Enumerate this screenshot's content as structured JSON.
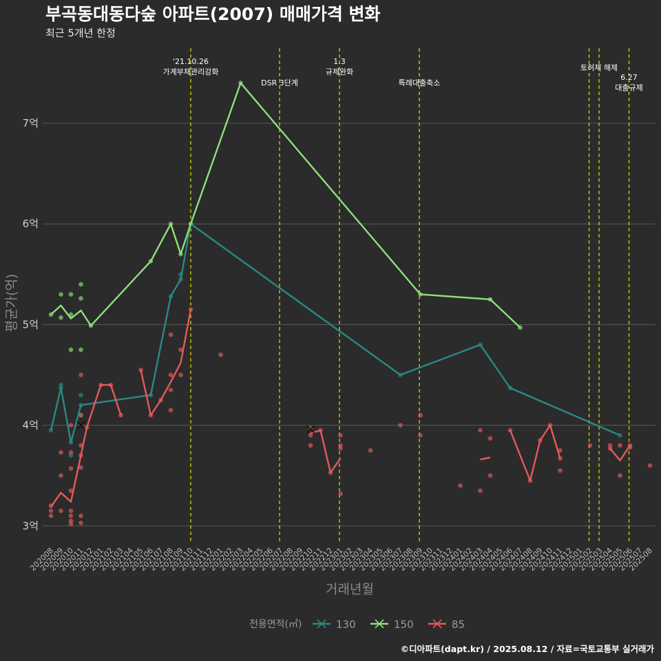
{
  "title": "부곡동대동다숲 아파트(2007) 매매가격 변화",
  "subtitle": "최근 5개년 한정",
  "caption": "©디아파트(dapt.kr) / 2025.08.12 / 자료=국토교통부 실거래가",
  "chart_data": {
    "type": "line",
    "xlabel": "거래년월",
    "ylabel": "평균가(억)",
    "ylim": [
      2.85,
      7.9
    ],
    "yticks": [
      3,
      4,
      5,
      6,
      7
    ],
    "ytick_labels": [
      "3억",
      "4억",
      "5억",
      "6억",
      "7억"
    ],
    "grid": true,
    "legend_position": "bottom",
    "legend_title": "전용면적(㎡)",
    "categories": [
      "202008",
      "202009",
      "202010",
      "202011",
      "202012",
      "202101",
      "202102",
      "202103",
      "202104",
      "202105",
      "202106",
      "202107",
      "202108",
      "202109",
      "202110",
      "202111",
      "202112",
      "202201",
      "202202",
      "202203",
      "202204",
      "202205",
      "202206",
      "202207",
      "202208",
      "202209",
      "202210",
      "202211",
      "202212",
      "202301",
      "202302",
      "202303",
      "202304",
      "202305",
      "202306",
      "202307",
      "202308",
      "202309",
      "202310",
      "202311",
      "202312",
      "202401",
      "202402",
      "202403",
      "202404",
      "202405",
      "202406",
      "202407",
      "202408",
      "202409",
      "202410",
      "202411",
      "202412",
      "202501",
      "202502",
      "202503",
      "202504",
      "202505",
      "202506",
      "202507",
      "202508"
    ],
    "events": [
      {
        "x": 14.0,
        "label": "'21.10.26\n가계부채관리강화"
      },
      {
        "x": 22.9,
        "label": "DSR 3단계"
      },
      {
        "x": 28.9,
        "label": "1.3\n규제완화"
      },
      {
        "x": 36.9,
        "label": "특례대출축소"
      },
      {
        "x": 53.9,
        "label": ""
      },
      {
        "x": 54.9,
        "label": "토허제 해제"
      },
      {
        "x": 57.9,
        "label": "6.27\n대출규제"
      }
    ],
    "series": [
      {
        "name": "130",
        "color": "#2a8a85",
        "line": [
          [
            0,
            3.95
          ],
          [
            1,
            4.37
          ],
          [
            2,
            3.83
          ],
          [
            3,
            4.2
          ],
          [
            10,
            4.3
          ],
          [
            12,
            5.28
          ],
          [
            13,
            5.45
          ],
          [
            14,
            6.0
          ],
          [
            35,
            4.5
          ],
          [
            43,
            4.8
          ],
          [
            46,
            4.37
          ],
          [
            57,
            3.9
          ]
        ],
        "points": [
          [
            0,
            3.95
          ],
          [
            1,
            4.4
          ],
          [
            1,
            4.37
          ],
          [
            2,
            3.83
          ],
          [
            2,
            3.7
          ],
          [
            3,
            4.3
          ],
          [
            3,
            4.2
          ],
          [
            3,
            4.1
          ],
          [
            10,
            4.3
          ],
          [
            12,
            5.28
          ],
          [
            13,
            5.5
          ],
          [
            13,
            5.45
          ],
          [
            14,
            6.0
          ],
          [
            35,
            4.5
          ],
          [
            43,
            4.8
          ],
          [
            46,
            4.37
          ],
          [
            57,
            3.9
          ]
        ]
      },
      {
        "name": "150",
        "color": "#8fe07e",
        "line": [
          [
            0,
            5.1
          ],
          [
            1,
            5.19
          ],
          [
            2,
            5.06
          ],
          [
            3,
            5.14
          ],
          [
            4,
            4.99
          ],
          [
            10,
            5.63
          ],
          [
            12,
            6.0
          ],
          [
            13,
            5.7
          ],
          [
            14,
            6.0
          ],
          [
            19,
            7.4
          ],
          [
            37,
            5.3
          ],
          [
            44,
            5.25
          ],
          [
            47,
            4.97
          ]
        ],
        "points": [
          [
            0,
            5.1
          ],
          [
            1,
            5.3
          ],
          [
            1,
            5.07
          ],
          [
            2,
            5.3
          ],
          [
            2,
            5.1
          ],
          [
            2,
            4.75
          ],
          [
            3,
            5.4
          ],
          [
            3,
            5.26
          ],
          [
            3,
            4.75
          ],
          [
            4,
            4.99
          ],
          [
            10,
            5.63
          ],
          [
            12,
            6.0
          ],
          [
            13,
            5.7
          ],
          [
            14,
            6.0
          ],
          [
            19,
            7.4
          ],
          [
            37,
            5.3
          ],
          [
            44,
            5.25
          ],
          [
            47,
            4.97
          ]
        ]
      },
      {
        "name": "85",
        "color": "#e65a5a",
        "line": [
          [
            0,
            3.19
          ],
          [
            1,
            3.33
          ],
          [
            2,
            3.24
          ],
          [
            3,
            3.7
          ],
          [
            3.6,
            3.98
          ],
          [
            5,
            4.4
          ],
          [
            6,
            4.4
          ],
          [
            7,
            4.1
          ],
          [
            null,
            null
          ],
          [
            9,
            4.55
          ],
          [
            10,
            4.1
          ],
          [
            11,
            4.25
          ],
          [
            12,
            4.43
          ],
          [
            13,
            4.62
          ],
          [
            14,
            5.15
          ],
          [
            null,
            null
          ],
          [
            26,
            3.92
          ],
          [
            27,
            3.95
          ],
          [
            28,
            3.53
          ],
          [
            29,
            3.67
          ],
          [
            null,
            null
          ],
          [
            43,
            3.66
          ],
          [
            44,
            3.68
          ],
          [
            null,
            null
          ],
          [
            46,
            3.95
          ],
          [
            48,
            3.45
          ],
          [
            49,
            3.85
          ],
          [
            50,
            4.0
          ],
          [
            51,
            3.67
          ],
          [
            null,
            null
          ],
          [
            56,
            3.77
          ],
          [
            57,
            3.65
          ],
          [
            58,
            3.8
          ]
        ],
        "points": [
          [
            0,
            3.2
          ],
          [
            0,
            3.15
          ],
          [
            0,
            3.1
          ],
          [
            1,
            3.15
          ],
          [
            1,
            3.5
          ],
          [
            1,
            3.73
          ],
          [
            2,
            4.0
          ],
          [
            2,
            3.73
          ],
          [
            2,
            3.57
          ],
          [
            2,
            3.35
          ],
          [
            2,
            3.15
          ],
          [
            2,
            3.1
          ],
          [
            2,
            3.05
          ],
          [
            2,
            3.02
          ],
          [
            3,
            4.5
          ],
          [
            3,
            4.1
          ],
          [
            3,
            3.8
          ],
          [
            3,
            3.7
          ],
          [
            3,
            3.58
          ],
          [
            3,
            3.1
          ],
          [
            3,
            3.03
          ],
          [
            3.6,
            3.98
          ],
          [
            5,
            4.4
          ],
          [
            6,
            4.4
          ],
          [
            7,
            4.1
          ],
          [
            9,
            4.55
          ],
          [
            10,
            4.1
          ],
          [
            11,
            4.25
          ],
          [
            12,
            4.9
          ],
          [
            12,
            4.5
          ],
          [
            12,
            4.35
          ],
          [
            12,
            4.15
          ],
          [
            13,
            4.75
          ],
          [
            13,
            4.5
          ],
          [
            14,
            5.15
          ],
          [
            17,
            4.7
          ],
          [
            26,
            3.97
          ],
          [
            26,
            3.9
          ],
          [
            26,
            3.8
          ],
          [
            27,
            3.95
          ],
          [
            28,
            3.53
          ],
          [
            29,
            3.9
          ],
          [
            29,
            3.8
          ],
          [
            29,
            3.77
          ],
          [
            29,
            3.32
          ],
          [
            32,
            3.75
          ],
          [
            35,
            4.0
          ],
          [
            37,
            4.1
          ],
          [
            37,
            3.9
          ],
          [
            41,
            3.4
          ],
          [
            43,
            3.95
          ],
          [
            43,
            3.35
          ],
          [
            44,
            3.87
          ],
          [
            44,
            3.5
          ],
          [
            46,
            3.95
          ],
          [
            48,
            3.45
          ],
          [
            49,
            3.85
          ],
          [
            50,
            4.0
          ],
          [
            51,
            3.75
          ],
          [
            51,
            3.67
          ],
          [
            51,
            3.55
          ],
          [
            54,
            3.8
          ],
          [
            56,
            3.8
          ],
          [
            56,
            3.77
          ],
          [
            57,
            3.8
          ],
          [
            57,
            3.5
          ],
          [
            58,
            3.8
          ],
          [
            58,
            3.78
          ],
          [
            60,
            3.6
          ]
        ]
      }
    ],
    "cross_markers": [
      {
        "series": "85",
        "x": 3,
        "y": 4.0
      },
      {
        "series": "85",
        "x": 26,
        "y": 3.96
      }
    ]
  }
}
